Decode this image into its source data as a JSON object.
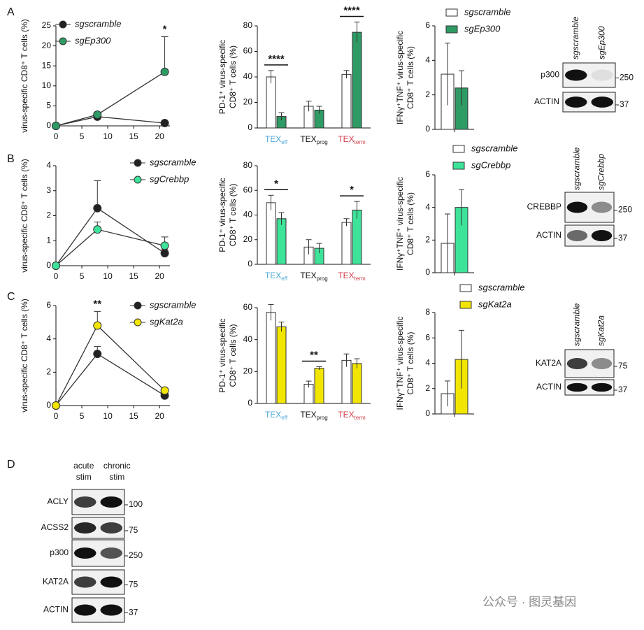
{
  "panels": [
    "A",
    "B",
    "C",
    "D"
  ],
  "watermark": "公众号 · 图灵基因",
  "chart_data": [
    {
      "type": "line",
      "ylabel": [
        "virus-specific CD8⁺ T cells (%)"
      ],
      "x": [
        0,
        8,
        21
      ],
      "xlim": [
        0,
        22
      ],
      "xticks": [
        0,
        5,
        10,
        15,
        20
      ],
      "ylim": [
        0,
        25
      ],
      "yticks": [
        0,
        5,
        10,
        15,
        20,
        25
      ],
      "legend": "upper left",
      "series": [
        {
          "name": "sgscramble",
          "color": "#222222",
          "values": [
            0,
            2.3,
            0.7
          ],
          "errors": [
            0,
            0.3,
            0.2
          ]
        },
        {
          "name": "sgEp300",
          "color": "#2e9a64",
          "values": [
            0,
            2.8,
            13.5
          ],
          "errors": [
            0,
            0.5,
            8.8
          ]
        }
      ],
      "annotations": [
        {
          "text": "*",
          "index": 2
        }
      ]
    },
    {
      "type": "bar",
      "ylabel": [
        "PD-1⁺ virus-specific",
        "CD8⁺ T cells (%)"
      ],
      "ylim": [
        0,
        80
      ],
      "yticks": [
        0,
        20,
        40,
        60,
        80
      ],
      "legend": "none",
      "categories": [
        {
          "main": "TEX",
          "sub": "eff",
          "color": "#4aa8d8"
        },
        {
          "main": "TEX",
          "sub": "prog",
          "color": "#111111"
        },
        {
          "main": "TEX",
          "sub": "term",
          "color": "#d0404a"
        }
      ],
      "series": [
        {
          "name": "sgscramble",
          "color": "#ffffff",
          "values": [
            40,
            17,
            42
          ],
          "errors": [
            5,
            4,
            3
          ]
        },
        {
          "name": "sgEp300",
          "color": "#2e9a64",
          "values": [
            9,
            14,
            75
          ],
          "errors": [
            3,
            3,
            8
          ]
        }
      ],
      "annotations": [
        {
          "text": "****",
          "category": 0
        },
        {
          "text": "****",
          "category": 2
        }
      ]
    },
    {
      "type": "bar",
      "ylabel": [
        "IFNγ⁺TNF⁺ virus-specific",
        "CD8⁺ T cells (%)"
      ],
      "ylim": [
        0,
        6
      ],
      "yticks": [
        0,
        2,
        4,
        6
      ],
      "legend": "above",
      "categories": [
        null
      ],
      "series": [
        {
          "name": "sgscramble",
          "color": "#ffffff",
          "values": [
            3.2
          ],
          "errors": [
            1.8
          ]
        },
        {
          "name": "sgEp300",
          "color": "#2e9a64",
          "values": [
            2.4
          ],
          "errors": [
            1.0
          ]
        }
      ]
    },
    {
      "type": "line",
      "ylabel": [
        "virus-specific CD8⁺ T cells (%)"
      ],
      "x": [
        0,
        8,
        21
      ],
      "xlim": [
        0,
        22
      ],
      "xticks": [
        0,
        5,
        10,
        15,
        20
      ],
      "ylim": [
        0,
        4
      ],
      "yticks": [
        0,
        1,
        2,
        3,
        4
      ],
      "legend": "upper right",
      "series": [
        {
          "name": "sgscramble",
          "color": "#222222",
          "values": [
            0,
            2.3,
            0.5
          ],
          "errors": [
            0,
            1.1,
            0.15
          ]
        },
        {
          "name": "sgCrebbp",
          "color": "#3ee39a",
          "values": [
            0,
            1.45,
            0.8
          ],
          "errors": [
            0,
            0.3,
            0.35
          ]
        }
      ]
    },
    {
      "type": "bar",
      "ylabel": [
        "PD-1⁺ virus-specific",
        "CD8⁺ T cells (%)"
      ],
      "ylim": [
        0,
        80
      ],
      "yticks": [
        0,
        20,
        40,
        60,
        80
      ],
      "legend": "none",
      "categories": [
        {
          "main": "TEX",
          "sub": "eff",
          "color": "#4aa8d8"
        },
        {
          "main": "TEX",
          "sub": "prog",
          "color": "#111111"
        },
        {
          "main": "TEX",
          "sub": "term",
          "color": "#d0404a"
        }
      ],
      "series": [
        {
          "name": "sgscramble",
          "color": "#ffffff",
          "values": [
            50,
            14,
            34
          ],
          "errors": [
            6,
            6,
            3
          ]
        },
        {
          "name": "sgCrebbp",
          "color": "#3ee39a",
          "values": [
            37,
            13,
            44
          ],
          "errors": [
            5,
            4,
            7
          ]
        }
      ],
      "annotations": [
        {
          "text": "*",
          "category": 0
        },
        {
          "text": "*",
          "category": 2
        }
      ]
    },
    {
      "type": "bar",
      "ylabel": [
        "IFNγ⁺TNF⁺ virus-specific",
        "CD8⁺ T cells (%)"
      ],
      "ylim": [
        0,
        6
      ],
      "yticks": [
        0,
        2,
        4,
        6
      ],
      "legend": "above",
      "categories": [
        null
      ],
      "series": [
        {
          "name": "sgscramble",
          "color": "#ffffff",
          "values": [
            1.8
          ],
          "errors": [
            1.8
          ]
        },
        {
          "name": "sgCrebbp",
          "color": "#3ee39a",
          "values": [
            4.0
          ],
          "errors": [
            1.1
          ]
        }
      ]
    },
    {
      "type": "line",
      "ylabel": [
        "virus-specific CD8⁺ T cells (%)"
      ],
      "x": [
        0,
        8,
        21
      ],
      "xlim": [
        0,
        22
      ],
      "xticks": [
        0,
        5,
        10,
        15,
        20
      ],
      "ylim": [
        0,
        6
      ],
      "yticks": [
        0,
        2,
        4,
        6
      ],
      "legend": "upper right",
      "series": [
        {
          "name": "sgscramble",
          "color": "#222222",
          "values": [
            0,
            3.1,
            0.6
          ],
          "errors": [
            0,
            0.45,
            0.1
          ]
        },
        {
          "name": "sgKat2a",
          "color": "#f2e600",
          "values": [
            0,
            4.8,
            0.9
          ],
          "errors": [
            0,
            0.85,
            0.1
          ]
        }
      ],
      "annotations": [
        {
          "text": "**",
          "index": 1
        }
      ]
    },
    {
      "type": "bar",
      "ylabel": [
        "PD-1⁺ virus-specific",
        "CD8⁺ T cells (%)"
      ],
      "ylim": [
        0,
        60
      ],
      "yticks": [
        0,
        20,
        40,
        60
      ],
      "legend": "none",
      "categories": [
        {
          "main": "TEX",
          "sub": "eff",
          "color": "#4aa8d8"
        },
        {
          "main": "TEX",
          "sub": "prog",
          "color": "#111111"
        },
        {
          "main": "TEX",
          "sub": "term",
          "color": "#d0404a"
        }
      ],
      "series": [
        {
          "name": "sgscramble",
          "color": "#ffffff",
          "values": [
            57,
            12,
            27
          ],
          "errors": [
            5,
            2,
            4
          ]
        },
        {
          "name": "sgKat2a",
          "color": "#f2e600",
          "values": [
            48,
            22,
            25
          ],
          "errors": [
            3,
            1,
            3
          ]
        }
      ],
      "annotations": [
        {
          "text": "**",
          "category": 1
        }
      ]
    },
    {
      "type": "bar",
      "ylabel": [
        "IFNγ⁺TNF⁺ virus-specific",
        "CD8⁺ T cells (%)"
      ],
      "ylim": [
        0,
        8
      ],
      "yticks": [
        0,
        2,
        4,
        6,
        8
      ],
      "legend": "above",
      "categories": [
        null
      ],
      "series": [
        {
          "name": "sgscramble",
          "color": "#ffffff",
          "values": [
            1.6
          ],
          "errors": [
            1.0
          ]
        },
        {
          "name": "sgKat2a",
          "color": "#f2e600",
          "values": [
            4.3
          ],
          "errors": [
            2.3
          ]
        }
      ]
    }
  ],
  "blots": [
    {
      "columns": [
        "sgscramble",
        "sgEp300"
      ],
      "rows": [
        {
          "label": "p300",
          "marker": 250
        },
        {
          "label": "ACTIN",
          "marker": 37
        }
      ]
    },
    {
      "columns": [
        "sgscramble",
        "sgCrebbp"
      ],
      "rows": [
        {
          "label": "CREBBP",
          "marker": 250
        },
        {
          "label": "ACTIN",
          "marker": 37
        }
      ]
    },
    {
      "columns": [
        "sgscramble",
        "sgKat2a"
      ],
      "rows": [
        {
          "label": "KAT2A",
          "marker": 75
        },
        {
          "label": "ACTIN",
          "marker": 37
        }
      ]
    },
    {
      "columns": [
        [
          "acute",
          "stim"
        ],
        [
          "chronic",
          "stim"
        ]
      ],
      "rows": [
        {
          "label": "ACLY",
          "marker": 100
        },
        {
          "label": "ACSS2",
          "marker": 75
        },
        {
          "label": "p300",
          "marker": 250
        },
        {
          "label": "KAT2A",
          "marker": 75
        },
        {
          "label": "ACTIN",
          "marker": 37
        }
      ]
    }
  ]
}
